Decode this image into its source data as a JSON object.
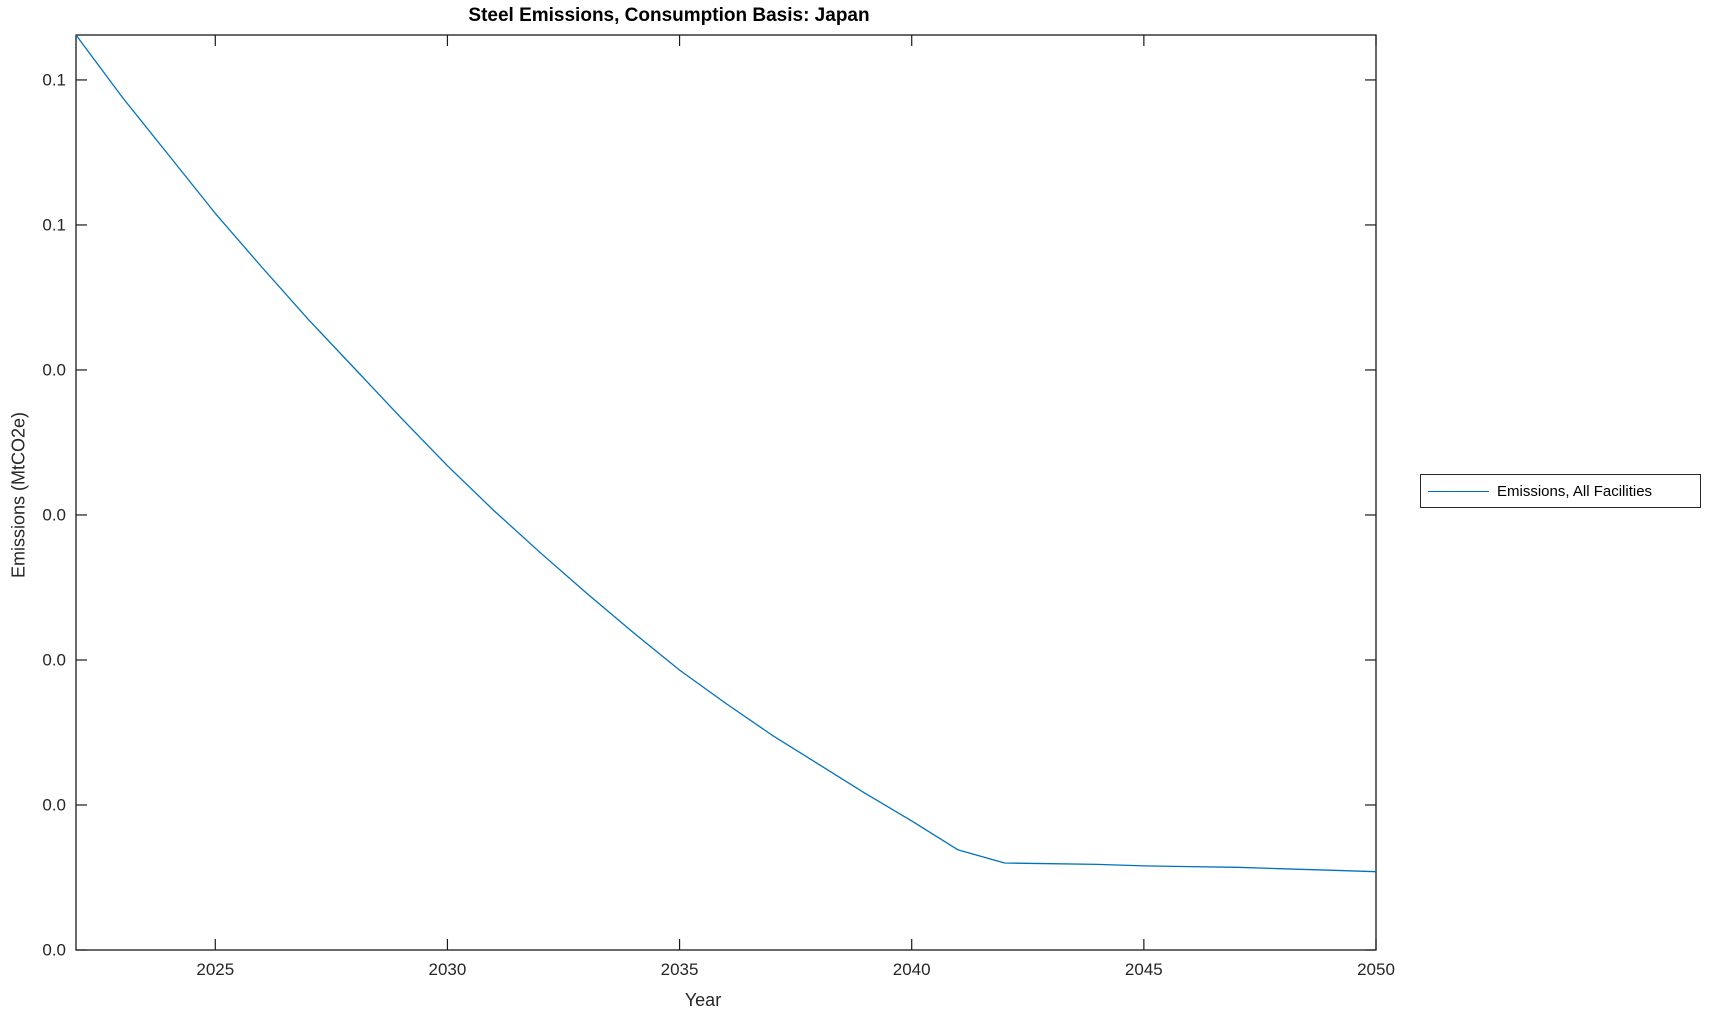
{
  "figure": {
    "title": "Steel Emissions, Consumption Basis: Japan",
    "xlabel": "Year",
    "ylabel": "Emissions (MtCO2e)",
    "legend": {
      "position": "outside-right",
      "entries": [
        {
          "label": "Emissions, All Facilities",
          "color": "#0072BD"
        }
      ]
    },
    "colors": {
      "axis": "#1a1a1a",
      "tick_text": "#262626",
      "background": "#ffffff",
      "line": "#0072BD"
    }
  },
  "chart_data": {
    "type": "line",
    "title": "Steel Emissions, Consumption Basis: Japan",
    "xlabel": "Year",
    "ylabel": "Emissions (MtCO2e)",
    "grid": false,
    "legend_position": "outside-right",
    "box": true,
    "xlim": [
      2022,
      2050
    ],
    "ylim": [
      0,
      0.0631
    ],
    "x_ticks": [
      2025,
      2030,
      2035,
      2040,
      2045,
      2050
    ],
    "x_tick_labels": [
      "2025",
      "2030",
      "2035",
      "2040",
      "2045",
      "2050"
    ],
    "y_ticks": [
      0,
      0.01,
      0.02,
      0.03,
      0.04,
      0.05,
      0.06
    ],
    "y_tick_labels": [
      "0.0",
      "0.0",
      "0.0",
      "0.0",
      "0.0",
      "0.1",
      "0.1"
    ],
    "y_tick_label_format": "%.1f (rounded, duplicated labels as displayed)",
    "series": [
      {
        "name": "Emissions, All Facilities",
        "color": "#0072BD",
        "x": [
          2022,
          2023,
          2024,
          2025,
          2026,
          2027,
          2028,
          2029,
          2030,
          2031,
          2032,
          2033,
          2034,
          2035,
          2036,
          2037,
          2038,
          2039,
          2040,
          2041,
          2042,
          2043,
          2044,
          2045,
          2046,
          2047,
          2048,
          2049,
          2050
        ],
        "y": [
          0.0631,
          0.0588,
          0.0548,
          0.0508,
          0.0471,
          0.0435,
          0.0401,
          0.0367,
          0.0334,
          0.0303,
          0.0274,
          0.0246,
          0.0219,
          0.0193,
          0.017,
          0.0148,
          0.0128,
          0.0108,
          0.0089,
          0.0069,
          0.006,
          0.00595,
          0.0059,
          0.0058,
          0.00575,
          0.0057,
          0.0056,
          0.0055,
          0.0054
        ]
      }
    ]
  }
}
